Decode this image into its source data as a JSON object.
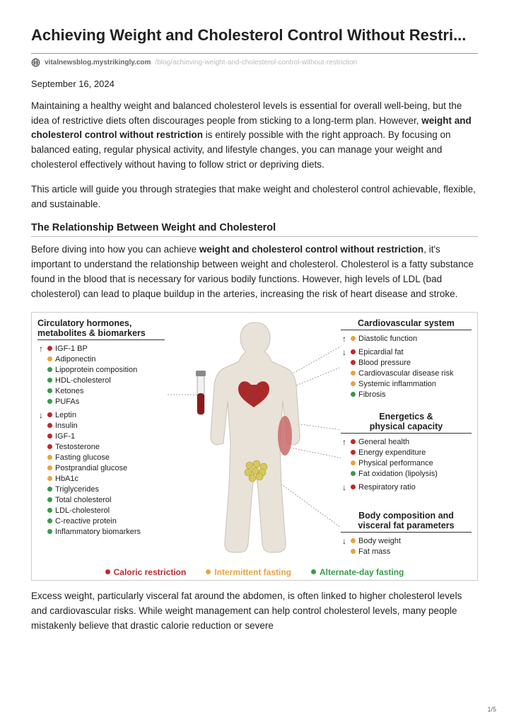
{
  "title": "Achieving Weight and Cholesterol Control Without Restri...",
  "url_domain": "vitalnewsblog.mystrikingly.com",
  "url_path": "/blog/achieving-weight-and-cholesterol-control-without-restriction",
  "date": "September 16, 2024",
  "p1_a": "Maintaining a healthy weight and balanced cholesterol levels is essential for overall well-being, but the idea of restrictive diets often discourages people from sticking to a long-term plan. However, ",
  "p1_b": "weight and cholesterol control without restriction",
  "p1_c": " is entirely possible with the right approach. By focusing on balanced eating, regular physical activity, and lifestyle changes, you can manage your weight and cholesterol effectively without having to follow strict or depriving diets.",
  "p2": "This article will guide you through strategies that make weight and cholesterol control achievable, flexible, and sustainable.",
  "h2": "The Relationship Between Weight and Cholesterol",
  "p3_a": "Before diving into how you can achieve ",
  "p3_b": "weight and cholesterol control without restriction",
  "p3_c": ", it's important to understand the relationship between weight and cholesterol. Cholesterol is a fatty substance found in the blood that is necessary for various bodily functions. However, high levels of LDL (bad cholesterol) can lead to plaque buildup in the arteries, increasing the risk of heart disease and stroke.",
  "p4": "Excess weight, particularly visceral fat around the abdomen, is often linked to higher cholesterol levels and cardiovascular risks. While weight management can help control cholesterol levels, many people mistakenly believe that drastic calorie reduction or severe",
  "pagecount": "1/5",
  "colors": {
    "cr": "#c1272d",
    "if": "#e8a33d",
    "adf": "#3a9a4a",
    "silhouette": "#e8e2d8",
    "silhouette_stroke": "#c9c2b4",
    "heart": "#a82a2a",
    "muscle": "#c96a6a",
    "fat": "#d8c85a",
    "tube_cap": "#888",
    "tube_blood": "#8a1a1a",
    "leader": "#888"
  },
  "panels": {
    "left": {
      "title_l1": "Circulatory hormones,",
      "title_l2": "metabolites & biomarkers",
      "groups": [
        {
          "arrow": "↑",
          "items": [
            {
              "c": "cr",
              "t": "IGF-1 BP"
            },
            {
              "c": "if",
              "t": "Adiponectin"
            },
            {
              "c": "adf",
              "t": "Lipoprotein composition"
            },
            {
              "c": "adf",
              "t": "HDL-cholesterol"
            },
            {
              "c": "adf",
              "t": "Ketones"
            },
            {
              "c": "adf",
              "t": "PUFAs"
            }
          ]
        },
        {
          "arrow": "↓",
          "items": [
            {
              "c": "cr",
              "t": "Leptin"
            },
            {
              "c": "cr",
              "t": "Insulin"
            },
            {
              "c": "cr",
              "t": "IGF-1"
            },
            {
              "c": "cr",
              "t": "Testosterone"
            },
            {
              "c": "if",
              "t": "Fasting glucose"
            },
            {
              "c": "if",
              "t": "Postprandial glucose"
            },
            {
              "c": "if",
              "t": "HbA1c"
            },
            {
              "c": "adf",
              "t": "Triglycerides"
            },
            {
              "c": "adf",
              "t": "Total cholesterol"
            },
            {
              "c": "adf",
              "t": "LDL-cholesterol"
            },
            {
              "c": "adf",
              "t": "C-reactive protein"
            },
            {
              "c": "adf",
              "t": "Inflammatory biomarkers"
            }
          ]
        }
      ]
    },
    "cardio": {
      "title": "Cardiovascular system",
      "groups": [
        {
          "arrow": "↑",
          "items": [
            {
              "c": "if",
              "t": "Diastolic function"
            }
          ]
        },
        {
          "arrow": "↓",
          "items": [
            {
              "c": "cr",
              "t": "Epicardial fat"
            },
            {
              "c": "cr",
              "t": "Blood pressure"
            },
            {
              "c": "if",
              "t": "Cardiovascular disease risk"
            },
            {
              "c": "if",
              "t": "Systemic inflammation"
            },
            {
              "c": "adf",
              "t": "Fibrosis"
            }
          ]
        }
      ]
    },
    "energ": {
      "title_l1": "Energetics &",
      "title_l2": "physical capacity",
      "groups": [
        {
          "arrow": "↑",
          "items": [
            {
              "c": "cr",
              "t": "General health"
            },
            {
              "c": "cr",
              "t": "Energy expenditure"
            },
            {
              "c": "if",
              "t": "Physical performance"
            },
            {
              "c": "adf",
              "t": "Fat oxidation (lipolysis)"
            }
          ]
        },
        {
          "arrow": "↓",
          "items": [
            {
              "c": "cr",
              "t": "Respiratory ratio"
            }
          ]
        }
      ]
    },
    "body": {
      "title_l1": "Body composition  and",
      "title_l2": "visceral fat parameters",
      "groups": [
        {
          "arrow": "↓",
          "items": [
            {
              "c": "if",
              "t": "Body weight"
            },
            {
              "c": "if",
              "t": "Fat mass"
            }
          ]
        }
      ]
    }
  },
  "legend": [
    {
      "c": "cr",
      "t": "Caloric restriction"
    },
    {
      "c": "if",
      "t": "Intermittent fasting"
    },
    {
      "c": "adf",
      "t": "Alternate-day fasting"
    }
  ]
}
